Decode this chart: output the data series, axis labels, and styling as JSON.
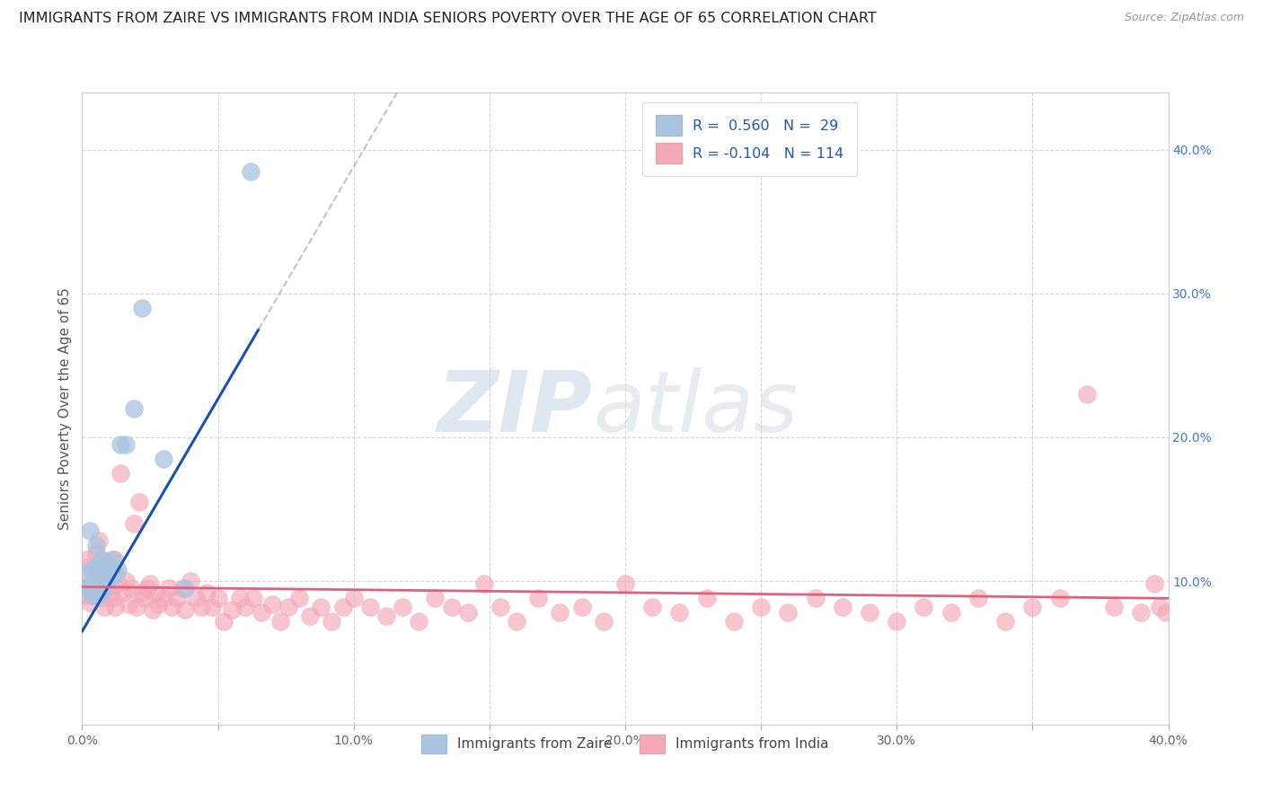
{
  "title": "IMMIGRANTS FROM ZAIRE VS IMMIGRANTS FROM INDIA SENIORS POVERTY OVER THE AGE OF 65 CORRELATION CHART",
  "source": "Source: ZipAtlas.com",
  "ylabel": "Seniors Poverty Over the Age of 65",
  "xlim": [
    0.0,
    0.4
  ],
  "ylim": [
    0.0,
    0.44
  ],
  "xticks": [
    0.0,
    0.05,
    0.1,
    0.15,
    0.2,
    0.25,
    0.3,
    0.35,
    0.4
  ],
  "xticklabels": [
    "0.0%",
    "",
    "10.0%",
    "",
    "20.0%",
    "",
    "30.0%",
    "",
    "40.0%"
  ],
  "yticks_right": [
    0.1,
    0.2,
    0.3,
    0.4
  ],
  "ytick_labels_right": [
    "10.0%",
    "20.0%",
    "30.0%",
    "40.0%"
  ],
  "zaire_R": 0.56,
  "zaire_N": 29,
  "india_R": -0.104,
  "india_N": 114,
  "zaire_color": "#a8c4e0",
  "india_color": "#f4a8b8",
  "zaire_line_color": "#1a50b0",
  "india_line_color": "#e06080",
  "watermark_zip_color": "#c8d8e8",
  "watermark_atlas_color": "#d0d8e0",
  "background_color": "#ffffff",
  "grid_color": "#cccccc",
  "title_fontsize": 11.5,
  "zaire_x": [
    0.001,
    0.002,
    0.003,
    0.003,
    0.004,
    0.004,
    0.005,
    0.005,
    0.005,
    0.006,
    0.006,
    0.007,
    0.007,
    0.007,
    0.008,
    0.008,
    0.009,
    0.009,
    0.01,
    0.011,
    0.012,
    0.013,
    0.014,
    0.016,
    0.019,
    0.022,
    0.03,
    0.038,
    0.062
  ],
  "zaire_y": [
    0.105,
    0.095,
    0.095,
    0.135,
    0.09,
    0.108,
    0.105,
    0.11,
    0.125,
    0.09,
    0.11,
    0.095,
    0.105,
    0.115,
    0.095,
    0.108,
    0.1,
    0.112,
    0.102,
    0.115,
    0.105,
    0.108,
    0.195,
    0.195,
    0.22,
    0.29,
    0.185,
    0.095,
    0.385
  ],
  "india_x": [
    0.001,
    0.002,
    0.002,
    0.003,
    0.003,
    0.004,
    0.004,
    0.005,
    0.005,
    0.006,
    0.006,
    0.007,
    0.007,
    0.007,
    0.008,
    0.008,
    0.009,
    0.009,
    0.01,
    0.01,
    0.011,
    0.011,
    0.012,
    0.012,
    0.013,
    0.014,
    0.015,
    0.016,
    0.017,
    0.018,
    0.019,
    0.02,
    0.021,
    0.022,
    0.023,
    0.024,
    0.025,
    0.026,
    0.027,
    0.028,
    0.03,
    0.032,
    0.033,
    0.035,
    0.037,
    0.038,
    0.04,
    0.042,
    0.044,
    0.046,
    0.048,
    0.05,
    0.052,
    0.055,
    0.058,
    0.06,
    0.063,
    0.066,
    0.07,
    0.073,
    0.076,
    0.08,
    0.084,
    0.088,
    0.092,
    0.096,
    0.1,
    0.106,
    0.112,
    0.118,
    0.124,
    0.13,
    0.136,
    0.142,
    0.148,
    0.154,
    0.16,
    0.168,
    0.176,
    0.184,
    0.192,
    0.2,
    0.21,
    0.22,
    0.23,
    0.24,
    0.25,
    0.26,
    0.27,
    0.28,
    0.29,
    0.3,
    0.31,
    0.32,
    0.33,
    0.34,
    0.35,
    0.36,
    0.37,
    0.38,
    0.39,
    0.395,
    0.397,
    0.399
  ],
  "india_y": [
    0.09,
    0.115,
    0.095,
    0.085,
    0.11,
    0.1,
    0.09,
    0.12,
    0.095,
    0.128,
    0.105,
    0.088,
    0.1,
    0.115,
    0.082,
    0.11,
    0.095,
    0.105,
    0.092,
    0.11,
    0.088,
    0.105,
    0.082,
    0.115,
    0.098,
    0.175,
    0.092,
    0.1,
    0.084,
    0.095,
    0.14,
    0.082,
    0.155,
    0.092,
    0.088,
    0.095,
    0.098,
    0.08,
    0.092,
    0.084,
    0.088,
    0.095,
    0.082,
    0.088,
    0.095,
    0.08,
    0.1,
    0.088,
    0.082,
    0.092,
    0.082,
    0.088,
    0.072,
    0.08,
    0.088,
    0.082,
    0.088,
    0.078,
    0.084,
    0.072,
    0.082,
    0.088,
    0.076,
    0.082,
    0.072,
    0.082,
    0.088,
    0.082,
    0.076,
    0.082,
    0.072,
    0.088,
    0.082,
    0.078,
    0.098,
    0.082,
    0.072,
    0.088,
    0.078,
    0.082,
    0.072,
    0.098,
    0.082,
    0.078,
    0.088,
    0.072,
    0.082,
    0.078,
    0.088,
    0.082,
    0.078,
    0.072,
    0.082,
    0.078,
    0.088,
    0.072,
    0.082,
    0.088,
    0.23,
    0.082,
    0.078,
    0.098,
    0.082,
    0.078
  ],
  "zaire_line_x0": 0.0,
  "zaire_line_x1": 0.065,
  "zaire_line_y0": 0.065,
  "zaire_line_y1": 0.275,
  "india_line_x0": 0.0,
  "india_line_x1": 0.4,
  "india_line_y0": 0.096,
  "india_line_y1": 0.088
}
